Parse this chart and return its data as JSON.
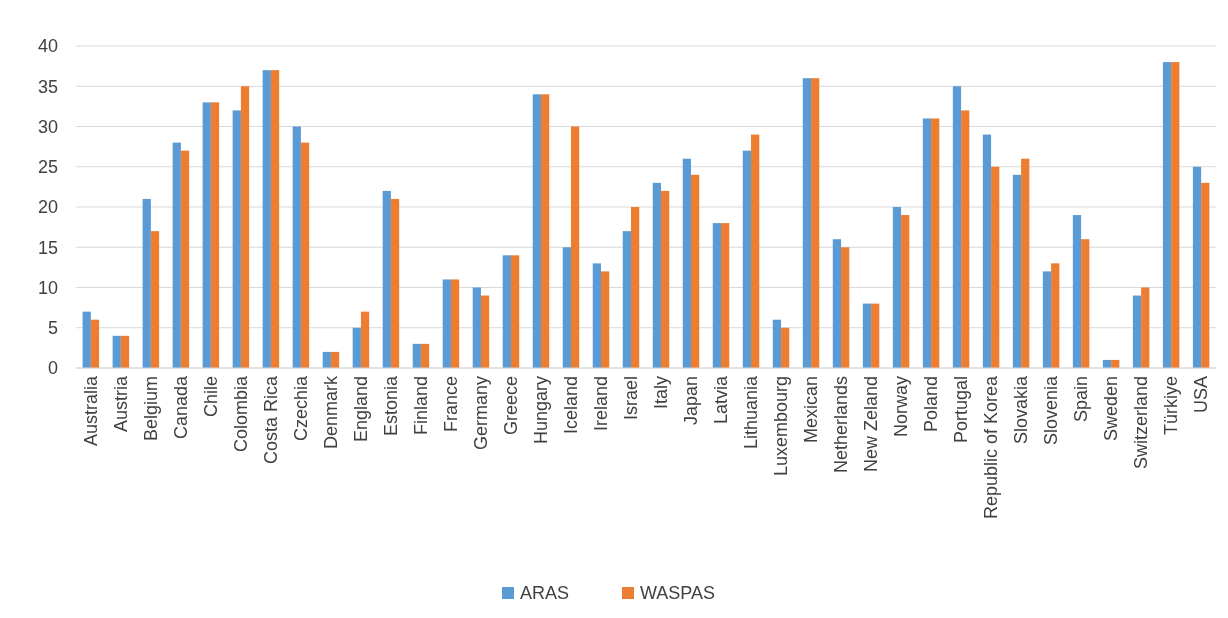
{
  "chart_data": {
    "type": "bar",
    "categories": [
      "Australia",
      "Austria",
      "Belgium",
      "Canada",
      "Chile",
      "Colombia",
      "Costa Rica",
      "Czechia",
      "Denmark",
      "England",
      "Estonia",
      "Finland",
      "France",
      "Germany",
      "Greece",
      "Hungary",
      "Iceland",
      "Ireland",
      "Israel",
      "Italy",
      "Japan",
      "Latvia",
      "Lithuania",
      "Luxembourg",
      "Mexican",
      "Netherlands",
      "New Zeland",
      "Norway",
      "Poland",
      "Portugal",
      "Republic of Korea",
      "Slovakia",
      "Slovenia",
      "Spain",
      "Sweden",
      "Switzerland",
      "Türkiye",
      "USA"
    ],
    "series": [
      {
        "name": "ARAS",
        "color": "#5b9bd5",
        "values": [
          7,
          4,
          21,
          28,
          33,
          32,
          37,
          30,
          2,
          5,
          22,
          3,
          11,
          10,
          14,
          34,
          15,
          13,
          17,
          23,
          26,
          18,
          27,
          6,
          36,
          16,
          8,
          20,
          31,
          35,
          29,
          24,
          12,
          19,
          1,
          9,
          38,
          25
        ]
      },
      {
        "name": "WASPAS",
        "color": "#ed7d31",
        "values": [
          6,
          4,
          17,
          27,
          33,
          35,
          37,
          28,
          2,
          7,
          21,
          3,
          11,
          9,
          14,
          34,
          30,
          12,
          20,
          22,
          24,
          18,
          29,
          5,
          36,
          15,
          8,
          19,
          31,
          32,
          25,
          26,
          13,
          16,
          1,
          10,
          38,
          23
        ]
      }
    ],
    "ylim": [
      0,
      40
    ],
    "yticks": [
      0,
      5,
      10,
      15,
      20,
      25,
      30,
      35,
      40
    ],
    "grid": "y",
    "legend": "bottom"
  }
}
